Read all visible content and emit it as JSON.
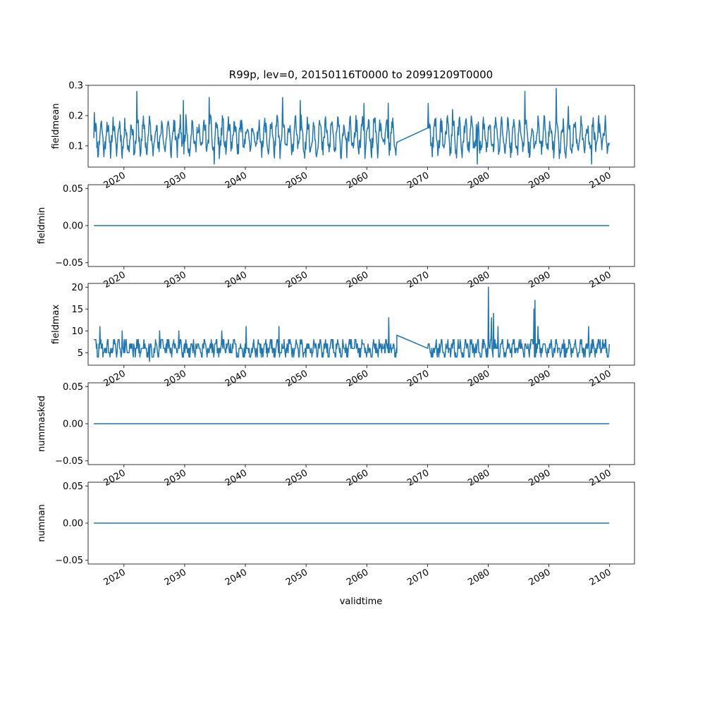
{
  "title": "R99p, lev=0, 20150116T0000 to 20991209T0000",
  "xlabel": "validtime",
  "colors": {
    "line": "#1f77b4",
    "axes": "#000000",
    "background": "#ffffff"
  },
  "chart_data": [
    {
      "type": "line",
      "ylabel": "fieldmean",
      "xlim": [
        2014.1,
        2104.1
      ],
      "ylim": [
        0.03,
        0.3
      ],
      "yticks": [
        0.1,
        0.2,
        0.3
      ],
      "ytick_labels": [
        "0.1",
        "0.2",
        "0.3"
      ],
      "xticks": [
        2020,
        2030,
        2040,
        2050,
        2060,
        2070,
        2080,
        2090,
        2100
      ],
      "xtick_labels": [
        "2020",
        "2030",
        "2040",
        "2050",
        "2060",
        "2070",
        "2080",
        "2090",
        "2100"
      ],
      "noise": {
        "kind": "monthly",
        "base": 0.13,
        "amp": 0.045,
        "spread": 0.03,
        "min": 0.04,
        "max": 0.21,
        "seed": 11,
        "spikes": [
          [
            2015.1,
            0.21
          ],
          [
            2022.1,
            0.28
          ],
          [
            2029.8,
            0.25
          ],
          [
            2034.0,
            0.26
          ],
          [
            2046.1,
            0.26
          ],
          [
            2049.0,
            0.25
          ],
          [
            2059.5,
            0.24
          ],
          [
            2063.5,
            0.24
          ],
          [
            2070.1,
            0.24
          ],
          [
            2074.1,
            0.22
          ],
          [
            2086.0,
            0.28
          ],
          [
            2091.2,
            0.29
          ],
          [
            2093.2,
            0.23
          ],
          [
            2034.9,
            0.04
          ],
          [
            2078.2,
            0.04
          ],
          [
            2097.0,
            0.04
          ]
        ]
      },
      "segments": [
        [
          2015.04,
          2064.95
        ],
        [
          2070.04,
          2099.94
        ]
      ],
      "series": [
        {
          "x": [],
          "y": []
        }
      ]
    },
    {
      "type": "line",
      "ylabel": "fieldmin",
      "xlim": [
        2014.1,
        2104.1
      ],
      "ylim": [
        -0.055,
        0.055
      ],
      "yticks": [
        -0.05,
        0.0,
        0.05
      ],
      "ytick_labels": [
        "−0.05",
        "0.00",
        "0.05"
      ],
      "xticks": [
        2020,
        2030,
        2040,
        2050,
        2060,
        2070,
        2080,
        2090,
        2100
      ],
      "xtick_labels": [
        "2020",
        "2030",
        "2040",
        "2050",
        "2060",
        "2070",
        "2080",
        "2090",
        "2100"
      ],
      "series": [
        {
          "x": [
            2015.04,
            2099.94
          ],
          "y": [
            0,
            0
          ]
        }
      ]
    },
    {
      "type": "line",
      "ylabel": "fieldmax",
      "xlim": [
        2014.1,
        2104.1
      ],
      "ylim": [
        2.15,
        20.85
      ],
      "yticks": [
        5,
        10,
        15,
        20
      ],
      "ytick_labels": [
        "5",
        "10",
        "15",
        "20"
      ],
      "xticks": [
        2020,
        2030,
        2040,
        2050,
        2060,
        2070,
        2080,
        2090,
        2100
      ],
      "xtick_labels": [
        "2020",
        "2030",
        "2040",
        "2050",
        "2060",
        "2070",
        "2080",
        "2090",
        "2100"
      ],
      "noise": {
        "kind": "integer",
        "base": 6,
        "amp": 1.2,
        "spread": 1.6,
        "min": 4,
        "max": 8,
        "seed": 29,
        "spikes": [
          [
            2015.0,
            8
          ],
          [
            2016.0,
            11
          ],
          [
            2019.7,
            10
          ],
          [
            2024.2,
            3
          ],
          [
            2025.9,
            10
          ],
          [
            2029.0,
            10
          ],
          [
            2036.1,
            10
          ],
          [
            2040.1,
            11
          ],
          [
            2045.5,
            11
          ],
          [
            2063.6,
            13
          ],
          [
            2080.0,
            20
          ],
          [
            2080.5,
            13
          ],
          [
            2080.9,
            14
          ],
          [
            2081.6,
            11
          ],
          [
            2087.5,
            15
          ],
          [
            2087.7,
            17
          ],
          [
            2088.2,
            11
          ],
          [
            2096.5,
            11
          ],
          [
            2098.9,
            8
          ]
        ]
      },
      "segments": [
        [
          2015.04,
          2064.95
        ],
        [
          2070.04,
          2099.94
        ]
      ],
      "bridge": [
        [
          2064.95,
          9
        ],
        [
          2070.04,
          6
        ]
      ],
      "series": [
        {
          "x": [],
          "y": []
        }
      ]
    },
    {
      "type": "line",
      "ylabel": "nummasked",
      "xlim": [
        2014.1,
        2104.1
      ],
      "ylim": [
        -0.055,
        0.055
      ],
      "yticks": [
        -0.05,
        0.0,
        0.05
      ],
      "ytick_labels": [
        "−0.05",
        "0.00",
        "0.05"
      ],
      "xticks": [
        2020,
        2030,
        2040,
        2050,
        2060,
        2070,
        2080,
        2090,
        2100
      ],
      "xtick_labels": [
        "2020",
        "2030",
        "2040",
        "2050",
        "2060",
        "2070",
        "2080",
        "2090",
        "2100"
      ],
      "series": [
        {
          "x": [
            2015.04,
            2099.94
          ],
          "y": [
            0,
            0
          ]
        }
      ]
    },
    {
      "type": "line",
      "ylabel": "numnan",
      "xlim": [
        2014.1,
        2104.1
      ],
      "ylim": [
        -0.055,
        0.055
      ],
      "yticks": [
        -0.05,
        0.0,
        0.05
      ],
      "ytick_labels": [
        "−0.05",
        "0.00",
        "0.05"
      ],
      "xticks": [
        2020,
        2030,
        2040,
        2050,
        2060,
        2070,
        2080,
        2090,
        2100
      ],
      "xtick_labels": [
        "2020",
        "2030",
        "2040",
        "2050",
        "2060",
        "2070",
        "2080",
        "2090",
        "2100"
      ],
      "series": [
        {
          "x": [
            2015.04,
            2099.94
          ],
          "y": [
            0,
            0
          ]
        }
      ]
    }
  ]
}
